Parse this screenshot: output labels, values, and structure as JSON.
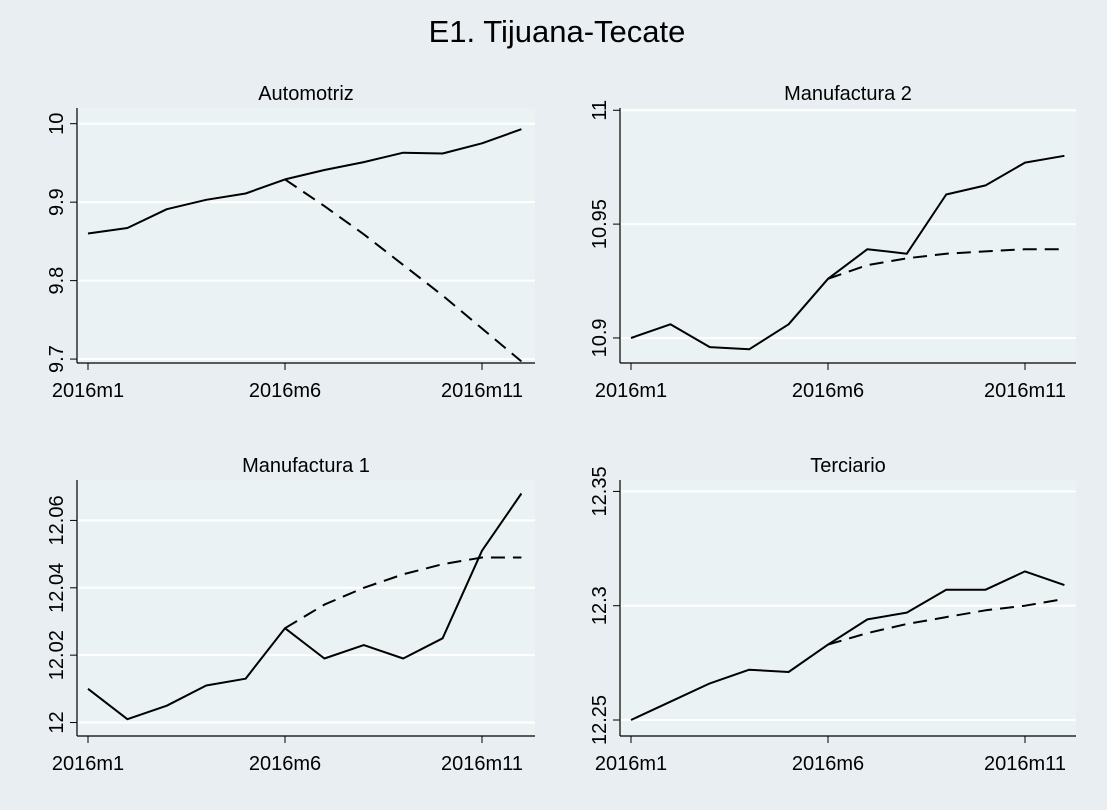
{
  "title": "E1. Tijuana-Tecate",
  "chart_data": [
    {
      "type": "line",
      "title": "Automotriz",
      "x_ticks": [
        "2016m1",
        "2016m6",
        "2016m11"
      ],
      "y_ticks": [
        "9.7",
        "9.8",
        "9.9",
        "10"
      ],
      "ylim": [
        9.695,
        10.02
      ],
      "x": [
        1,
        2,
        3,
        4,
        5,
        6,
        7,
        8,
        9,
        10,
        11,
        12
      ],
      "series": [
        {
          "style": "solid",
          "x": [
            1,
            2,
            3,
            4,
            5,
            6,
            7,
            8,
            9,
            10,
            11,
            12
          ],
          "values": [
            9.86,
            9.867,
            9.891,
            9.903,
            9.911,
            9.929,
            9.941,
            9.951,
            9.963,
            9.962,
            9.975,
            9.993
          ]
        },
        {
          "style": "dashed",
          "x": [
            6,
            7,
            8,
            9,
            10,
            11,
            12
          ],
          "values": [
            9.929,
            9.895,
            9.859,
            9.82,
            9.781,
            9.739,
            9.697
          ]
        }
      ]
    },
    {
      "type": "line",
      "title": "Manufactura 2",
      "x_ticks": [
        "2016m1",
        "2016m6",
        "2016m11"
      ],
      "y_ticks": [
        "10.9",
        "10.95",
        "11"
      ],
      "ylim": [
        10.889,
        11.001
      ],
      "x": [
        1,
        2,
        3,
        4,
        5,
        6,
        7,
        8,
        9,
        10,
        11,
        12
      ],
      "series": [
        {
          "style": "solid",
          "x": [
            1,
            2,
            3,
            4,
            5,
            6,
            7,
            8,
            9,
            10,
            11,
            12
          ],
          "values": [
            10.9,
            10.906,
            10.896,
            10.895,
            10.906,
            10.926,
            10.939,
            10.937,
            10.963,
            10.967,
            10.977,
            10.98
          ]
        },
        {
          "style": "dashed",
          "x": [
            6,
            7,
            8,
            9,
            10,
            11,
            12
          ],
          "values": [
            10.926,
            10.932,
            10.935,
            10.937,
            10.938,
            10.939,
            10.939
          ]
        }
      ]
    },
    {
      "type": "line",
      "title": "Manufactura 1",
      "x_ticks": [
        "2016m1",
        "2016m6",
        "2016m11"
      ],
      "y_ticks": [
        "12",
        "12.02",
        "12.04",
        "12.06"
      ],
      "ylim": [
        11.996,
        12.072
      ],
      "x": [
        1,
        2,
        3,
        4,
        5,
        6,
        7,
        8,
        9,
        10,
        11,
        12
      ],
      "series": [
        {
          "style": "solid",
          "x": [
            1,
            2,
            3,
            4,
            5,
            6,
            7,
            8,
            9,
            10,
            11,
            12
          ],
          "values": [
            12.01,
            12.001,
            12.005,
            12.011,
            12.013,
            12.028,
            12.019,
            12.023,
            12.019,
            12.025,
            12.051,
            12.068
          ]
        },
        {
          "style": "dashed",
          "x": [
            6,
            7,
            8,
            9,
            10,
            11,
            12
          ],
          "values": [
            12.028,
            12.035,
            12.04,
            12.044,
            12.047,
            12.049,
            12.049
          ]
        }
      ]
    },
    {
      "type": "line",
      "title": "Terciario",
      "x_ticks": [
        "2016m1",
        "2016m6",
        "2016m11"
      ],
      "y_ticks": [
        "12.25",
        "12.3",
        "12.35"
      ],
      "ylim": [
        12.243,
        12.355
      ],
      "x": [
        1,
        2,
        3,
        4,
        5,
        6,
        7,
        8,
        9,
        10,
        11,
        12
      ],
      "series": [
        {
          "style": "solid",
          "x": [
            1,
            2,
            3,
            4,
            5,
            6,
            7,
            8,
            9,
            10,
            11,
            12
          ],
          "values": [
            12.25,
            12.258,
            12.266,
            12.272,
            12.271,
            12.283,
            12.294,
            12.297,
            12.307,
            12.307,
            12.315,
            12.309
          ]
        },
        {
          "style": "dashed",
          "x": [
            6,
            7,
            8,
            9,
            10,
            11,
            12
          ],
          "values": [
            12.283,
            12.288,
            12.292,
            12.295,
            12.298,
            12.3,
            12.303
          ]
        }
      ]
    }
  ]
}
